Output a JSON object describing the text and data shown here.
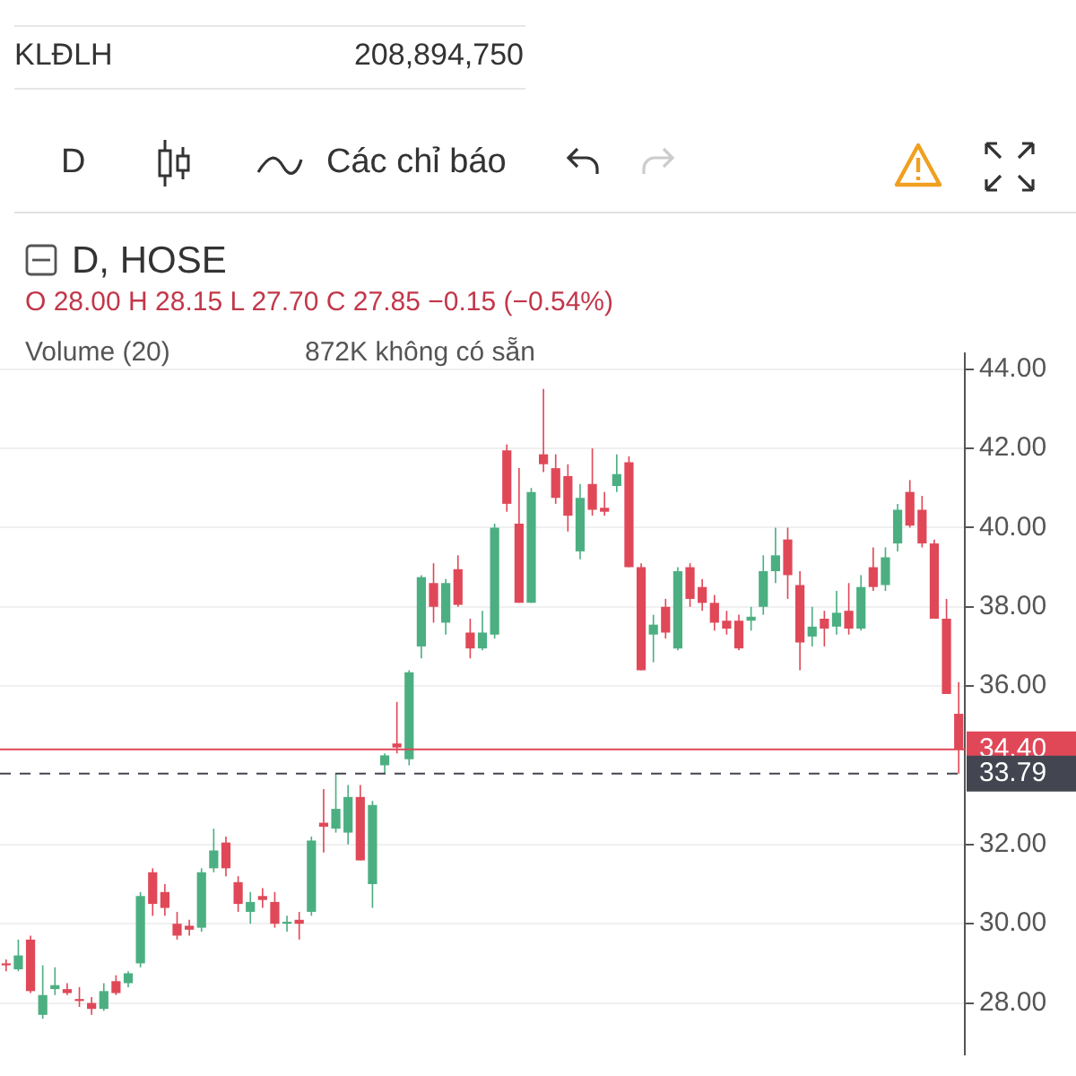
{
  "chart_data": {
    "type": "candlestick",
    "title": "D, HOSE",
    "annotations": [
      "KLĐLH",
      "208,894,750",
      "D",
      "Các chỉ báo",
      "O 28.00 H 28.15 L 27.70 C 27.85 −0.15 (−0.54%)",
      "Volume (20)",
      "872K không có sẵn"
    ],
    "categories": [
      null,
      null,
      null,
      null,
      null,
      null,
      null,
      null,
      null,
      null,
      null,
      null,
      null,
      null,
      null,
      null,
      null,
      null,
      null,
      null,
      null,
      null,
      null,
      null,
      null,
      null,
      null,
      null,
      null,
      null,
      null,
      null,
      null,
      null,
      null,
      null,
      null,
      null,
      null,
      null,
      null,
      null,
      null,
      null,
      null,
      null,
      null,
      null,
      null,
      null,
      null,
      null,
      null,
      null,
      null,
      null,
      null,
      null,
      null,
      null,
      null,
      null,
      null,
      null,
      null,
      null,
      null,
      null,
      null,
      null,
      null,
      null,
      null,
      null,
      null,
      null,
      null,
      null,
      null
    ],
    "ohlc": [
      [
        29.0,
        29.1,
        28.8,
        28.95
      ],
      [
        28.85,
        29.6,
        28.8,
        29.2
      ],
      [
        29.6,
        29.7,
        28.25,
        28.3
      ],
      [
        27.7,
        28.95,
        27.6,
        28.2
      ],
      [
        28.35,
        28.9,
        28.2,
        28.45
      ],
      [
        28.35,
        28.5,
        28.2,
        28.25
      ],
      [
        28.1,
        28.4,
        27.9,
        28.05
      ],
      [
        28.0,
        28.15,
        27.7,
        27.85
      ],
      [
        27.85,
        28.5,
        27.8,
        28.3
      ],
      [
        28.55,
        28.7,
        28.2,
        28.25
      ],
      [
        28.5,
        28.8,
        28.4,
        28.75
      ],
      [
        29.0,
        30.8,
        28.9,
        30.7
      ],
      [
        31.3,
        31.4,
        30.2,
        30.5
      ],
      [
        30.8,
        31.0,
        30.2,
        30.4
      ],
      [
        30.0,
        30.3,
        29.6,
        29.7
      ],
      [
        29.95,
        30.1,
        29.7,
        29.85
      ],
      [
        29.9,
        31.4,
        29.8,
        31.3
      ],
      [
        31.4,
        32.4,
        31.3,
        31.85
      ],
      [
        32.05,
        32.2,
        31.2,
        31.4
      ],
      [
        31.05,
        31.2,
        30.3,
        30.5
      ],
      [
        30.3,
        30.8,
        30.0,
        30.55
      ],
      [
        30.7,
        30.9,
        30.4,
        30.6
      ],
      [
        30.55,
        30.8,
        29.9,
        30.0
      ],
      [
        30.0,
        30.2,
        29.8,
        30.05
      ],
      [
        30.1,
        30.3,
        29.6,
        30.0
      ],
      [
        30.3,
        32.2,
        30.2,
        32.1
      ],
      [
        32.55,
        33.4,
        31.8,
        32.45
      ],
      [
        32.4,
        33.8,
        32.3,
        32.9
      ],
      [
        32.3,
        33.5,
        32.0,
        33.2
      ],
      [
        33.2,
        33.5,
        31.6,
        31.6
      ],
      [
        31.0,
        33.1,
        30.4,
        33.0
      ],
      [
        34.0,
        34.3,
        33.8,
        34.25
      ],
      [
        34.55,
        35.6,
        34.3,
        34.45
      ],
      [
        34.15,
        36.4,
        34.0,
        36.35
      ],
      [
        37.0,
        38.8,
        36.7,
        38.75
      ],
      [
        38.6,
        39.1,
        37.6,
        38.0
      ],
      [
        37.6,
        38.7,
        37.3,
        38.6
      ],
      [
        38.95,
        39.3,
        38.0,
        38.05
      ],
      [
        37.35,
        37.7,
        36.7,
        36.95
      ],
      [
        36.95,
        37.9,
        36.9,
        37.35
      ],
      [
        37.3,
        40.1,
        37.2,
        40.0
      ],
      [
        41.95,
        42.1,
        40.4,
        40.6
      ],
      [
        40.1,
        41.5,
        38.1,
        38.1
      ],
      [
        38.1,
        41.0,
        38.1,
        40.9
      ],
      [
        41.85,
        43.5,
        41.4,
        41.6
      ],
      [
        41.5,
        41.85,
        40.6,
        40.75
      ],
      [
        41.3,
        41.6,
        39.9,
        40.3
      ],
      [
        39.4,
        41.1,
        39.2,
        40.75
      ],
      [
        41.1,
        42.0,
        40.3,
        40.45
      ],
      [
        40.5,
        40.9,
        40.3,
        40.4
      ],
      [
        41.05,
        41.85,
        40.9,
        41.35
      ],
      [
        41.65,
        41.8,
        39.0,
        39.0
      ],
      [
        39.0,
        39.1,
        36.4,
        36.4
      ],
      [
        37.3,
        37.8,
        36.6,
        37.55
      ],
      [
        38.0,
        38.2,
        37.2,
        37.35
      ],
      [
        36.95,
        39.0,
        36.9,
        38.9
      ],
      [
        39.0,
        39.1,
        38.0,
        38.2
      ],
      [
        38.5,
        38.7,
        37.9,
        38.1
      ],
      [
        38.1,
        38.3,
        37.4,
        37.6
      ],
      [
        37.65,
        37.9,
        37.3,
        37.45
      ],
      [
        37.65,
        37.8,
        36.9,
        36.95
      ],
      [
        37.65,
        38.0,
        37.4,
        37.75
      ],
      [
        38.0,
        39.3,
        37.8,
        38.9
      ],
      [
        38.9,
        40.0,
        38.6,
        39.3
      ],
      [
        39.7,
        40.0,
        38.2,
        38.8
      ],
      [
        38.55,
        38.9,
        36.4,
        37.1
      ],
      [
        37.25,
        38.0,
        37.0,
        37.5
      ],
      [
        37.7,
        37.9,
        37.0,
        37.45
      ],
      [
        37.5,
        38.4,
        37.3,
        37.85
      ],
      [
        37.9,
        38.6,
        37.3,
        37.45
      ],
      [
        37.45,
        38.8,
        37.4,
        38.5
      ],
      [
        39.0,
        39.5,
        38.4,
        38.5
      ],
      [
        38.55,
        39.5,
        38.4,
        39.25
      ],
      [
        39.6,
        40.6,
        39.4,
        40.45
      ],
      [
        40.9,
        41.2,
        40.0,
        40.05
      ],
      [
        40.45,
        40.8,
        39.5,
        39.6
      ],
      [
        39.6,
        39.7,
        37.7,
        37.7
      ],
      [
        37.7,
        38.2,
        35.8,
        35.8
      ],
      [
        35.3,
        36.1,
        33.79,
        34.4
      ]
    ],
    "colors": [
      "#e04858",
      "#4caf82",
      "#e04858",
      "#4caf82",
      "#4caf82",
      "#e04858",
      "#e04858",
      "#e04858",
      "#4caf82",
      "#e04858",
      "#4caf82",
      "#4caf82",
      "#e04858",
      "#e04858",
      "#e04858",
      "#e04858",
      "#4caf82",
      "#4caf82",
      "#e04858",
      "#e04858",
      "#4caf82",
      "#e04858",
      "#e04858",
      "#4caf82",
      "#e04858",
      "#4caf82",
      "#e04858",
      "#4caf82",
      "#4caf82",
      "#e04858",
      "#4caf82",
      "#4caf82",
      "#e04858",
      "#4caf82",
      "#4caf82",
      "#e04858",
      "#4caf82",
      "#e04858",
      "#e04858",
      "#4caf82",
      "#4caf82",
      "#e04858",
      "#e04858",
      "#4caf82",
      "#e04858",
      "#e04858",
      "#e04858",
      "#4caf82",
      "#e04858",
      "#e04858",
      "#4caf82",
      "#e04858",
      "#e04858",
      "#4caf82",
      "#e04858",
      "#4caf82",
      "#e04858",
      "#e04858",
      "#e04858",
      "#e04858",
      "#e04858",
      "#4caf82",
      "#4caf82",
      "#4caf82",
      "#e04858",
      "#e04858",
      "#4caf82",
      "#e04858",
      "#4caf82",
      "#e04858",
      "#4caf82",
      "#e04858",
      "#4caf82",
      "#4caf82",
      "#e04858",
      "#e04858",
      "#e04858",
      "#e04858",
      "#e04858"
    ],
    "ylim": [
      26.7,
      44.4
    ],
    "yticks": [
      {
        "value": 28,
        "label": "28.00"
      },
      {
        "value": 30,
        "label": "30.00"
      },
      {
        "value": 32,
        "label": "32.00"
      },
      {
        "value": 36,
        "label": "36.00"
      },
      {
        "value": 38,
        "label": "38.00"
      },
      {
        "value": 40,
        "label": "40.00"
      },
      {
        "value": 42,
        "label": "42.00"
      },
      {
        "value": 44,
        "label": "44.00"
      }
    ],
    "grid": "y",
    "tick_labels": "y",
    "ref_lines": [
      {
        "axis": "y",
        "value": 34.4,
        "label": "34.40",
        "color": "#e04858",
        "line_style": "solid"
      },
      {
        "axis": "y",
        "value": 33.79,
        "label": "33.79",
        "color": "#434651",
        "line_style": "dashed"
      }
    ]
  }
}
